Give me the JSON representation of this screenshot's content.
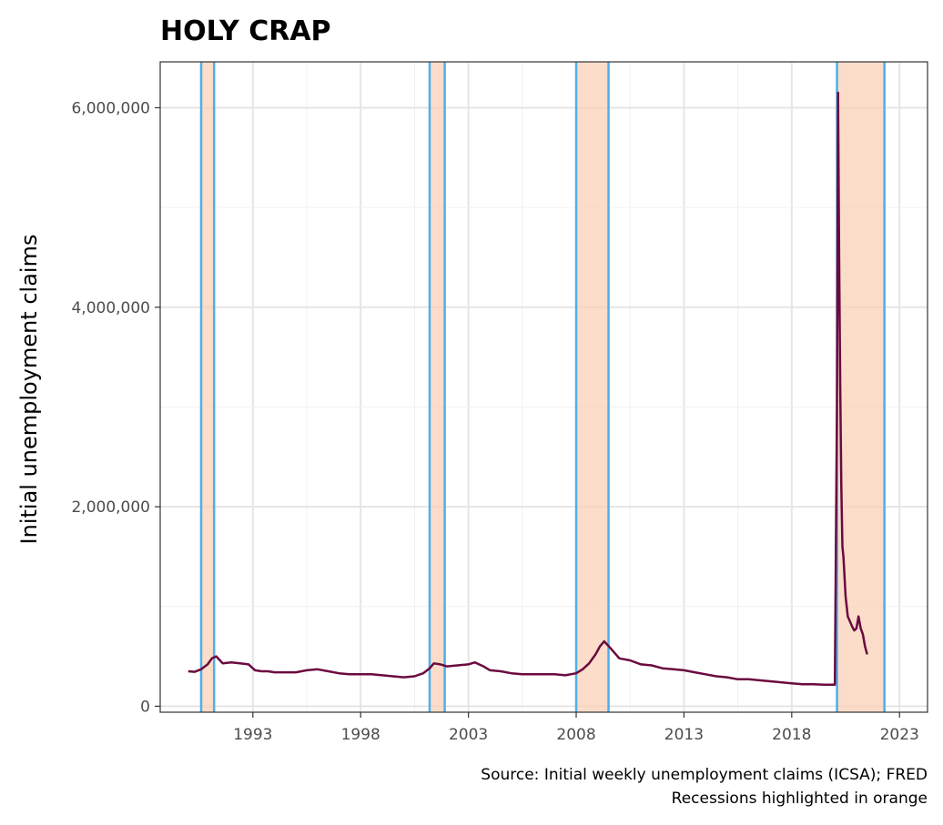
{
  "chart_data": {
    "type": "line",
    "title": "HOLY CRAP",
    "xlabel": "",
    "ylabel": "Initial unemployment claims",
    "caption_lines": [
      "Source: Initial weekly unemployment claims (ICSA); FRED",
      "Recessions highlighted in orange"
    ],
    "xlim": [
      1988.7,
      2024.3
    ],
    "ylim": [
      -60000,
      6460000
    ],
    "x_ticks": [
      1993,
      1998,
      2003,
      2008,
      2013,
      2018,
      2023
    ],
    "x_tick_labels": [
      "1993",
      "1998",
      "2003",
      "2008",
      "2013",
      "2018",
      "2023"
    ],
    "y_ticks": [
      0,
      2000000,
      4000000,
      6000000
    ],
    "y_tick_labels": [
      "0",
      "2,000,000",
      "4,000,000",
      "6,000,000"
    ],
    "grid": true,
    "recessions": [
      {
        "start": 1990.6,
        "end": 1991.2
      },
      {
        "start": 2001.2,
        "end": 2001.9
      },
      {
        "start": 2008.0,
        "end": 2009.5
      },
      {
        "start": 2020.1,
        "end": 2022.3
      }
    ],
    "series": [
      {
        "color": "#6b0a3f",
        "x": [
          1990.0,
          1990.3,
          1990.6,
          1990.9,
          1991.1,
          1991.3,
          1991.6,
          1992.0,
          1992.4,
          1992.8,
          1993.1,
          1993.4,
          1993.7,
          1994.0,
          1994.5,
          1995.0,
          1995.5,
          1996.0,
          1996.5,
          1997.0,
          1997.5,
          1998.0,
          1998.5,
          1999.0,
          1999.5,
          2000.0,
          2000.5,
          2000.9,
          2001.2,
          2001.4,
          2001.7,
          2002.0,
          2002.5,
          2003.0,
          2003.3,
          2003.7,
          2004.0,
          2004.5,
          2005.0,
          2005.5,
          2006.0,
          2006.5,
          2007.0,
          2007.5,
          2008.0,
          2008.3,
          2008.6,
          2008.9,
          2009.1,
          2009.3,
          2009.6,
          2010.0,
          2010.5,
          2011.0,
          2011.5,
          2012.0,
          2012.5,
          2013.0,
          2013.5,
          2014.0,
          2014.5,
          2015.0,
          2015.5,
          2016.0,
          2016.5,
          2017.0,
          2017.5,
          2018.0,
          2018.5,
          2019.0,
          2019.5,
          2020.0,
          2020.1,
          2020.15,
          2020.2,
          2020.25,
          2020.3,
          2020.35,
          2020.4,
          2020.5,
          2020.6,
          2020.7,
          2020.8,
          2020.9,
          2021.0,
          2021.1,
          2021.2,
          2021.3,
          2021.4,
          2021.5
        ],
        "y": [
          350000,
          345000,
          370000,
          420000,
          480000,
          500000,
          430000,
          440000,
          430000,
          420000,
          360000,
          350000,
          350000,
          340000,
          340000,
          340000,
          360000,
          370000,
          350000,
          330000,
          320000,
          320000,
          320000,
          310000,
          300000,
          290000,
          300000,
          330000,
          380000,
          430000,
          420000,
          400000,
          410000,
          420000,
          440000,
          400000,
          360000,
          350000,
          330000,
          320000,
          320000,
          320000,
          320000,
          310000,
          330000,
          370000,
          430000,
          520000,
          600000,
          650000,
          580000,
          480000,
          460000,
          420000,
          410000,
          380000,
          370000,
          360000,
          340000,
          320000,
          300000,
          290000,
          270000,
          270000,
          260000,
          250000,
          240000,
          230000,
          220000,
          220000,
          215000,
          215000,
          3000000,
          6150000,
          4500000,
          3200000,
          2200000,
          1600000,
          1500000,
          1100000,
          900000,
          850000,
          800000,
          760000,
          780000,
          900000,
          780000,
          720000,
          600000,
          520000
        ]
      }
    ]
  }
}
